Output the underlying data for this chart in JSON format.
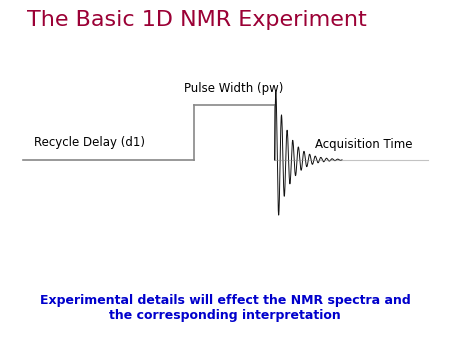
{
  "title": "The Basic 1D NMR Experiment",
  "title_color": "#9B0035",
  "title_fontsize": 16,
  "subtitle": "Experimental details will effect the NMR spectra and\nthe corresponding interpretation",
  "subtitle_color": "#0000CC",
  "subtitle_fontsize": 9,
  "background_color": "#ffffff",
  "recycle_label": "Recycle Delay (d1)",
  "pulse_label": "Pulse Width (pw)",
  "acq_label": "Acquisition Time",
  "line_color": "#888888",
  "signal_color_dark": "#111111",
  "signal_color_light": "#888888"
}
